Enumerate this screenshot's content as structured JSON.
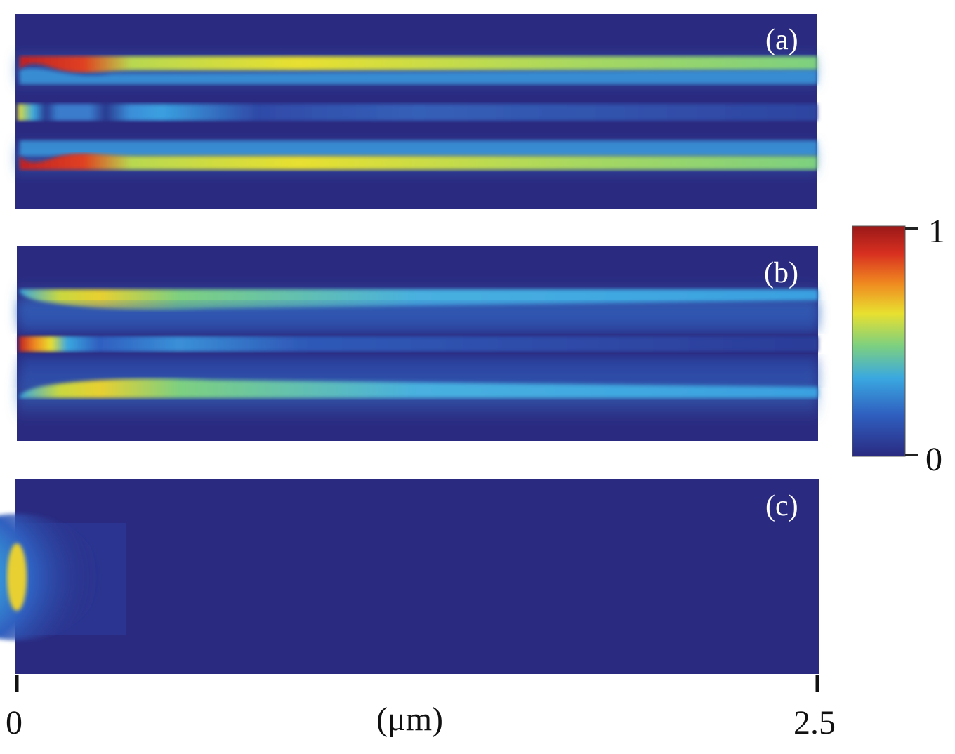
{
  "chart_data": {
    "type": "heatmap",
    "panels": [
      {
        "label": "(a)",
        "description_id": "a"
      },
      {
        "label": "(b)",
        "description_id": "b"
      },
      {
        "label": "(c)",
        "description_id": "c"
      }
    ],
    "xaxis": {
      "range": [
        0,
        2.5
      ],
      "unit_label": "(μm)",
      "tick_labels": [
        "0",
        "2.5"
      ]
    },
    "colorbar": {
      "range": [
        0,
        1
      ],
      "tick_labels": [
        "1",
        "0"
      ],
      "colormap": "jet",
      "colors": [
        "#2a2a80",
        "#2f5fc0",
        "#3aa8e0",
        "#7dd080",
        "#e8e030",
        "#f08a20",
        "#c02020"
      ]
    }
  }
}
